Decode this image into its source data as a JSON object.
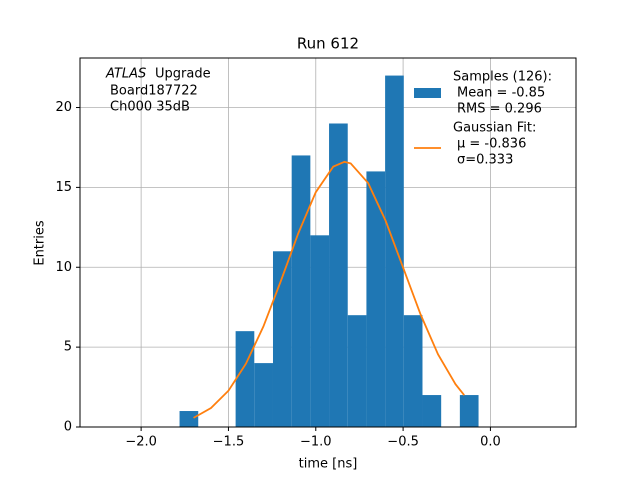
{
  "chart_data": {
    "type": "histogram",
    "title": "Run 612",
    "xlabel": "time [ns]",
    "ylabel": "Entries",
    "annotation": {
      "experiment": "ATLAS",
      "text": "Upgrade",
      "lines": [
        "Board187722",
        "Ch000 35dB"
      ]
    },
    "bins": [
      -1.78,
      -1.673,
      -1.566,
      -1.459,
      -1.352,
      -1.245,
      -1.138,
      -1.031,
      -0.924,
      -0.817,
      -0.71,
      -0.603,
      -0.496,
      -0.389,
      -0.282,
      -0.175,
      -0.068
    ],
    "series": [
      {
        "name": "Samples (126):",
        "legend_lines": [
          "Mean = -0.85",
          "RMS = 0.296"
        ],
        "type": "histogram",
        "color": "#1f77b4",
        "values": [
          1,
          0,
          0,
          6,
          4,
          11,
          17,
          12,
          19,
          7,
          16,
          22,
          7,
          2,
          0,
          2
        ]
      },
      {
        "name": "Gaussian Fit:",
        "legend_lines": [
          "μ = -0.836",
          "σ=0.333"
        ],
        "type": "line",
        "color": "#ff7f0e",
        "x": [
          -1.7,
          -1.6,
          -1.5,
          -1.4,
          -1.3,
          -1.2,
          -1.1,
          -1.0,
          -0.9,
          -0.836,
          -0.8,
          -0.7,
          -0.6,
          -0.5,
          -0.4,
          -0.3,
          -0.2,
          -0.15
        ],
        "values": [
          0.57,
          1.19,
          2.27,
          3.96,
          6.29,
          9.14,
          12.13,
          14.7,
          16.3,
          16.6,
          16.5,
          15.27,
          12.91,
          9.98,
          7.05,
          4.55,
          2.68,
          1.99
        ]
      }
    ],
    "xlim": [
      -2.35,
      0.49
    ],
    "ylim": [
      0,
      23.1
    ],
    "xticks": [
      {
        "value": -2.0,
        "label": "−2.0"
      },
      {
        "value": -1.5,
        "label": "−1.5"
      },
      {
        "value": -1.0,
        "label": "−1.0"
      },
      {
        "value": -0.5,
        "label": "−0.5"
      },
      {
        "value": 0.0,
        "label": "0.0"
      }
    ],
    "yticks": [
      0,
      5,
      10,
      15,
      20
    ],
    "grid": true,
    "legend": "upper right"
  }
}
